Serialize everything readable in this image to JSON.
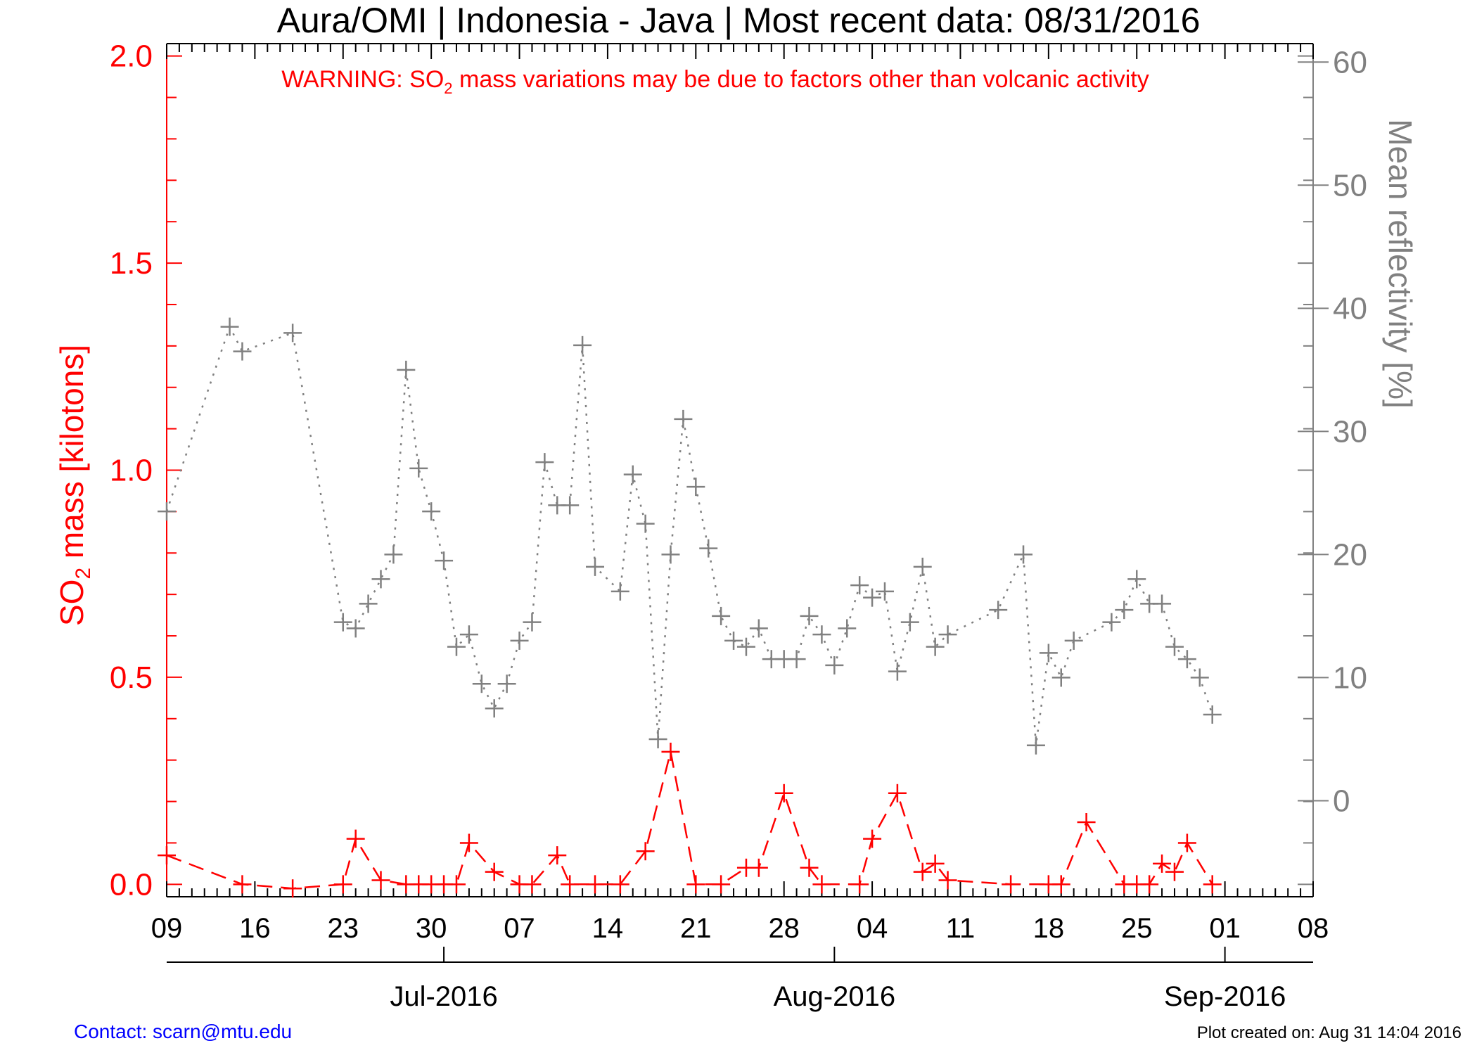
{
  "chart_data": {
    "type": "line",
    "title": "Aura/OMI | Indonesia - Java | Most recent data: 08/31/2016",
    "warning": {
      "prefix": "WARNING: SO",
      "subscript": "2",
      "suffix": " mass variations may be due to factors other than volcanic activity"
    },
    "ylabel_left": {
      "prefix": "SO",
      "subscript": "2",
      "suffix": " mass [kilotons]"
    },
    "ylabel_right": "Mean reflectivity [%]",
    "ylim_left": [
      -0.03,
      2.03
    ],
    "ylim_right": [
      -7.8,
      61.5
    ],
    "x_range": [
      "2016-06-09",
      "2016-09-08"
    ],
    "x_tick_labels": [
      "09",
      "16",
      "23",
      "30",
      "07",
      "14",
      "21",
      "28",
      "04",
      "11",
      "18",
      "25",
      "01",
      "08"
    ],
    "y_left_ticks": [
      "0.0",
      "0.5",
      "1.0",
      "1.5",
      "2.0"
    ],
    "y_right_ticks": [
      "0",
      "10",
      "20",
      "30",
      "40",
      "50",
      "60"
    ],
    "month_labels": [
      "Jul-2016",
      "Aug-2016",
      "Sep-2016"
    ],
    "series": [
      {
        "name": "SO2 mass",
        "axis": "left",
        "color": "#ff0000",
        "style": "dashed",
        "points": [
          [
            "2016-06-09",
            0.07
          ],
          [
            "2016-06-15",
            0.0
          ],
          [
            "2016-06-19",
            -0.01
          ],
          [
            "2016-06-23",
            0.0
          ],
          [
            "2016-06-24",
            0.11
          ],
          [
            "2016-06-26",
            0.01
          ],
          [
            "2016-06-28",
            0.0
          ],
          [
            "2016-06-29",
            0.0
          ],
          [
            "2016-06-30",
            0.0
          ],
          [
            "2016-07-01",
            0.0
          ],
          [
            "2016-07-02",
            0.0
          ],
          [
            "2016-07-03",
            0.1
          ],
          [
            "2016-07-05",
            0.03
          ],
          [
            "2016-07-07",
            0.0
          ],
          [
            "2016-07-08",
            0.0
          ],
          [
            "2016-07-10",
            0.07
          ],
          [
            "2016-07-11",
            0.0
          ],
          [
            "2016-07-13",
            0.0
          ],
          [
            "2016-07-15",
            0.0
          ],
          [
            "2016-07-17",
            0.08
          ],
          [
            "2016-07-19",
            0.32
          ],
          [
            "2016-07-21",
            0.0
          ],
          [
            "2016-07-23",
            0.0
          ],
          [
            "2016-07-25",
            0.04
          ],
          [
            "2016-07-26",
            0.04
          ],
          [
            "2016-07-28",
            0.22
          ],
          [
            "2016-07-30",
            0.04
          ],
          [
            "2016-07-31",
            0.0
          ],
          [
            "2016-08-03",
            0.0
          ],
          [
            "2016-08-04",
            0.11
          ],
          [
            "2016-08-06",
            0.22
          ],
          [
            "2016-08-08",
            0.03
          ],
          [
            "2016-08-09",
            0.05
          ],
          [
            "2016-08-10",
            0.01
          ],
          [
            "2016-08-15",
            0.0
          ],
          [
            "2016-08-18",
            0.0
          ],
          [
            "2016-08-19",
            0.0
          ],
          [
            "2016-08-21",
            0.15
          ],
          [
            "2016-08-24",
            0.0
          ],
          [
            "2016-08-25",
            0.0
          ],
          [
            "2016-08-26",
            0.0
          ],
          [
            "2016-08-27",
            0.05
          ],
          [
            "2016-08-28",
            0.03
          ],
          [
            "2016-08-29",
            0.1
          ],
          [
            "2016-08-31",
            0.0
          ]
        ]
      },
      {
        "name": "Mean reflectivity",
        "axis": "right",
        "color": "#808080",
        "style": "dotted",
        "points": [
          [
            "2016-06-09",
            23.5
          ],
          [
            "2016-06-14",
            38.5
          ],
          [
            "2016-06-15",
            36.5
          ],
          [
            "2016-06-19",
            38.0
          ],
          [
            "2016-06-23",
            14.5
          ],
          [
            "2016-06-24",
            14.0
          ],
          [
            "2016-06-25",
            16.0
          ],
          [
            "2016-06-26",
            18.0
          ],
          [
            "2016-06-27",
            20.0
          ],
          [
            "2016-06-28",
            35.0
          ],
          [
            "2016-06-29",
            27.0
          ],
          [
            "2016-06-30",
            23.5
          ],
          [
            "2016-07-01",
            19.5
          ],
          [
            "2016-07-02",
            12.5
          ],
          [
            "2016-07-03",
            13.5
          ],
          [
            "2016-07-04",
            9.5
          ],
          [
            "2016-07-05",
            7.5
          ],
          [
            "2016-07-06",
            9.5
          ],
          [
            "2016-07-07",
            13.0
          ],
          [
            "2016-07-08",
            14.5
          ],
          [
            "2016-07-09",
            27.5
          ],
          [
            "2016-07-10",
            24.0
          ],
          [
            "2016-07-11",
            24.0
          ],
          [
            "2016-07-12",
            37.0
          ],
          [
            "2016-07-13",
            19.0
          ],
          [
            "2016-07-15",
            17.0
          ],
          [
            "2016-07-16",
            26.5
          ],
          [
            "2016-07-17",
            22.5
          ],
          [
            "2016-07-18",
            5.0
          ],
          [
            "2016-07-19",
            20.0
          ],
          [
            "2016-07-20",
            31.0
          ],
          [
            "2016-07-21",
            25.5
          ],
          [
            "2016-07-22",
            20.5
          ],
          [
            "2016-07-23",
            15.0
          ],
          [
            "2016-07-24",
            13.0
          ],
          [
            "2016-07-25",
            12.5
          ],
          [
            "2016-07-26",
            14.0
          ],
          [
            "2016-07-27",
            11.5
          ],
          [
            "2016-07-28",
            11.5
          ],
          [
            "2016-07-29",
            11.5
          ],
          [
            "2016-07-30",
            15.0
          ],
          [
            "2016-07-31",
            13.5
          ],
          [
            "2016-08-01",
            11.0
          ],
          [
            "2016-08-02",
            14.0
          ],
          [
            "2016-08-03",
            17.5
          ],
          [
            "2016-08-04",
            16.5
          ],
          [
            "2016-08-05",
            17.0
          ],
          [
            "2016-08-06",
            10.5
          ],
          [
            "2016-08-07",
            14.5
          ],
          [
            "2016-08-08",
            19.0
          ],
          [
            "2016-08-09",
            12.5
          ],
          [
            "2016-08-10",
            13.5
          ],
          [
            "2016-08-14",
            15.5
          ],
          [
            "2016-08-16",
            20.0
          ],
          [
            "2016-08-17",
            4.5
          ],
          [
            "2016-08-18",
            12.0
          ],
          [
            "2016-08-19",
            10.0
          ],
          [
            "2016-08-20",
            13.0
          ],
          [
            "2016-08-23",
            14.5
          ],
          [
            "2016-08-24",
            15.5
          ],
          [
            "2016-08-25",
            18.0
          ],
          [
            "2016-08-26",
            16.0
          ],
          [
            "2016-08-27",
            16.0
          ],
          [
            "2016-08-28",
            12.5
          ],
          [
            "2016-08-29",
            11.5
          ],
          [
            "2016-08-30",
            10.0
          ],
          [
            "2016-08-31",
            7.0
          ]
        ]
      }
    ]
  },
  "footer": {
    "contact": "Contact: scarn@mtu.edu",
    "created": "Plot created on: Aug 31 14:04 2016"
  }
}
